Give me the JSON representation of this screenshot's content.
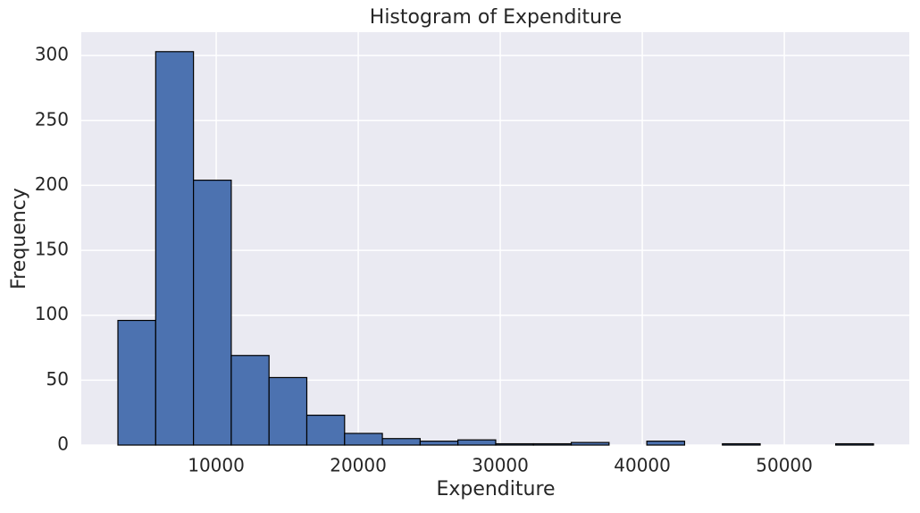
{
  "chart_data": {
    "type": "histogram",
    "title": "Histogram of Expenditure",
    "x_label": "Expenditure",
    "y_label": "Frequency",
    "bins": [
      3080,
      5740,
      8400,
      11060,
      13720,
      16380,
      19040,
      21700,
      24360,
      27020,
      29680,
      32340,
      35000,
      37660,
      40320,
      42980,
      45640,
      48300,
      50960,
      53620,
      56280
    ],
    "values": [
      96,
      303,
      204,
      69,
      52,
      23,
      9,
      5,
      3,
      4,
      1,
      1,
      2,
      0,
      3,
      0,
      1,
      0,
      0,
      1
    ],
    "color": "#4c72b0",
    "edge_color": "#000000",
    "xlim": [
      500,
      58800
    ],
    "ylim": [
      0,
      318
    ],
    "xticks": [
      10000,
      20000,
      30000,
      40000,
      50000
    ],
    "yticks": [
      0,
      50,
      100,
      150,
      200,
      250,
      300
    ],
    "grid": true
  }
}
